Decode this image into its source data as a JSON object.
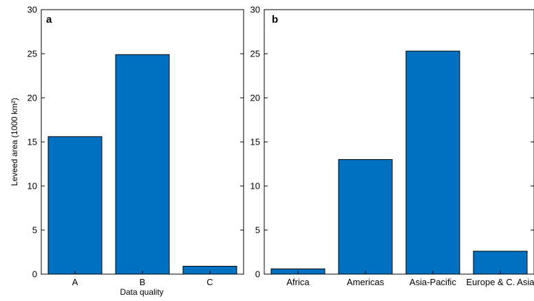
{
  "chart_data": [
    {
      "type": "bar",
      "panel_label": "a",
      "categories": [
        "A",
        "B",
        "C"
      ],
      "values": [
        15.6,
        24.9,
        0.9
      ],
      "xlabel": "Data quality",
      "ylabel": "Leveed area (1000 km²)",
      "ylim": [
        0,
        30
      ],
      "yticks": [
        0,
        5,
        10,
        15,
        20,
        25,
        30
      ],
      "bar_color": "#0070C0",
      "grid": false
    },
    {
      "type": "bar",
      "panel_label": "b",
      "categories": [
        "Africa",
        "Americas",
        "Asia-Pacific",
        "Europe & C. Asia"
      ],
      "values": [
        0.6,
        13.0,
        25.3,
        2.6
      ],
      "xlabel": "",
      "ylabel": "",
      "ylim": [
        0,
        30
      ],
      "yticks": [
        0,
        5,
        10,
        15,
        20,
        25,
        30
      ],
      "bar_color": "#0070C0",
      "grid": false
    }
  ]
}
